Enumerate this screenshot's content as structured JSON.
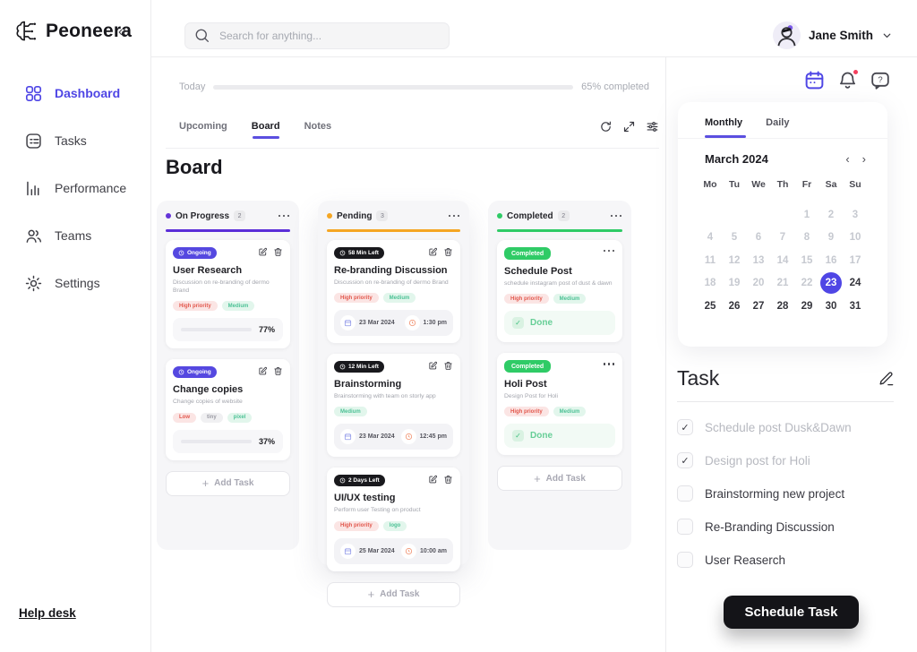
{
  "brand": {
    "name": "Peoneera",
    "collapse_glyph": "«"
  },
  "header": {
    "search_placeholder": "Search for anything...",
    "user_name": "Jane Smith"
  },
  "sidebar": {
    "items": [
      {
        "label": "Dashboard",
        "active": true
      },
      {
        "label": "Tasks",
        "active": false
      },
      {
        "label": "Performance",
        "active": false
      },
      {
        "label": "Teams",
        "active": false
      },
      {
        "label": "Settings",
        "active": false
      }
    ],
    "help_label": "Help desk"
  },
  "main": {
    "today_label": "Today",
    "progress_percent": 65,
    "progress_text": "65% completed",
    "tabs": [
      {
        "label": "Upcoming"
      },
      {
        "label": "Board"
      },
      {
        "label": "Notes"
      }
    ],
    "board_title": "Board"
  },
  "board": {
    "columns": [
      {
        "name": "On Progress",
        "count": "2",
        "accent": "#6434d8",
        "add_label": "Add Task",
        "cards": [
          {
            "badge": "Ongoing",
            "title": "User Research",
            "desc": "Discussion on re-branding of dermo Brand",
            "tags": [
              {
                "label": "High priority",
                "tone": "red"
              },
              {
                "label": "Medium",
                "tone": "green"
              }
            ],
            "progress_percent": 77,
            "progress_text": "77%"
          },
          {
            "badge": "Ongoing",
            "title": "Change copies",
            "desc": "Change copies of website",
            "tags": [
              {
                "label": "Low",
                "tone": "red"
              },
              {
                "label": "tiny",
                "tone": "gray"
              },
              {
                "label": "pixel",
                "tone": "green"
              }
            ],
            "progress_percent": 37,
            "progress_text": "37%"
          }
        ]
      },
      {
        "name": "Pending",
        "count": "3",
        "accent": "#f5a623",
        "add_label": "Add Task",
        "cards": [
          {
            "badge": "58 Min Left",
            "title": "Re-branding Discussion",
            "desc": "Discussion on re-branding of dermo Brand",
            "tags": [
              {
                "label": "High priority",
                "tone": "red"
              },
              {
                "label": "Medium",
                "tone": "green"
              }
            ],
            "date": "23 Mar 2024",
            "time": "1:30 pm"
          },
          {
            "badge": "12 Min Left",
            "title": "Brainstorming",
            "desc": "Brainstorming with team on storly app",
            "tags": [
              {
                "label": "Medium",
                "tone": "green"
              }
            ],
            "date": "23 Mar 2024",
            "time": "12:45 pm"
          },
          {
            "badge": "2 Days Left",
            "title": "UI/UX testing",
            "desc": "Perform user Testing on product",
            "tags": [
              {
                "label": "High priority",
                "tone": "red"
              },
              {
                "label": "logo",
                "tone": "green"
              }
            ],
            "date": "25 Mar 2024",
            "time": "10:00 am"
          }
        ]
      },
      {
        "name": "Completed",
        "count": "2",
        "accent": "#2fcb66",
        "add_label": "Add Task",
        "cards": [
          {
            "badge": "Completed",
            "title": "Schedule Post",
            "desc": "schedule instagram post of dust & dawn",
            "tags": [
              {
                "label": "High priority",
                "tone": "red"
              },
              {
                "label": "Medium",
                "tone": "green"
              }
            ],
            "done_label": "Done"
          },
          {
            "badge": "Completed",
            "title": "Holi Post",
            "desc": "Design Post for Holi",
            "tags": [
              {
                "label": "High priority",
                "tone": "red"
              },
              {
                "label": "Medium",
                "tone": "green"
              }
            ],
            "done_label": "Done"
          }
        ]
      }
    ]
  },
  "panel": {
    "tabs": [
      {
        "label": "Monthly"
      },
      {
        "label": "Daily"
      }
    ],
    "calendar": {
      "month": "March 2024",
      "prev": "‹",
      "next": "›",
      "weekdays": [
        "Mo",
        "Tu",
        "We",
        "Th",
        "Fr",
        "Sa",
        "Su"
      ],
      "cells": [
        "",
        "",
        "",
        "",
        "1",
        "2",
        "3",
        "4",
        "5",
        "6",
        "7",
        "8",
        "9",
        "10",
        "11",
        "12",
        "13",
        "14",
        "15",
        "16",
        "17",
        "18",
        "19",
        "20",
        "21",
        "22",
        "23",
        "24",
        "25",
        "26",
        "27",
        "28",
        "29",
        "30",
        "31"
      ],
      "selected_day": "23"
    },
    "task": {
      "title": "Task",
      "items": [
        {
          "label": "Schedule post Dusk&Dawn",
          "checked": true
        },
        {
          "label": "Design post for Holi",
          "checked": true
        },
        {
          "label": "Brainstorming new project",
          "checked": false
        },
        {
          "label": "Re-Branding Discussion",
          "checked": false
        },
        {
          "label": "User Reaserch",
          "checked": false
        }
      ]
    },
    "schedule_button_label": "Schedule Task"
  },
  "colors": {
    "accent": "#4f46e5",
    "on_progress": "#6434d8",
    "pending": "#f5a623",
    "completed": "#2fcb66",
    "high_priority": "#e2574c",
    "medium": "#4ec296",
    "notification_dot": "#f43f5e"
  }
}
